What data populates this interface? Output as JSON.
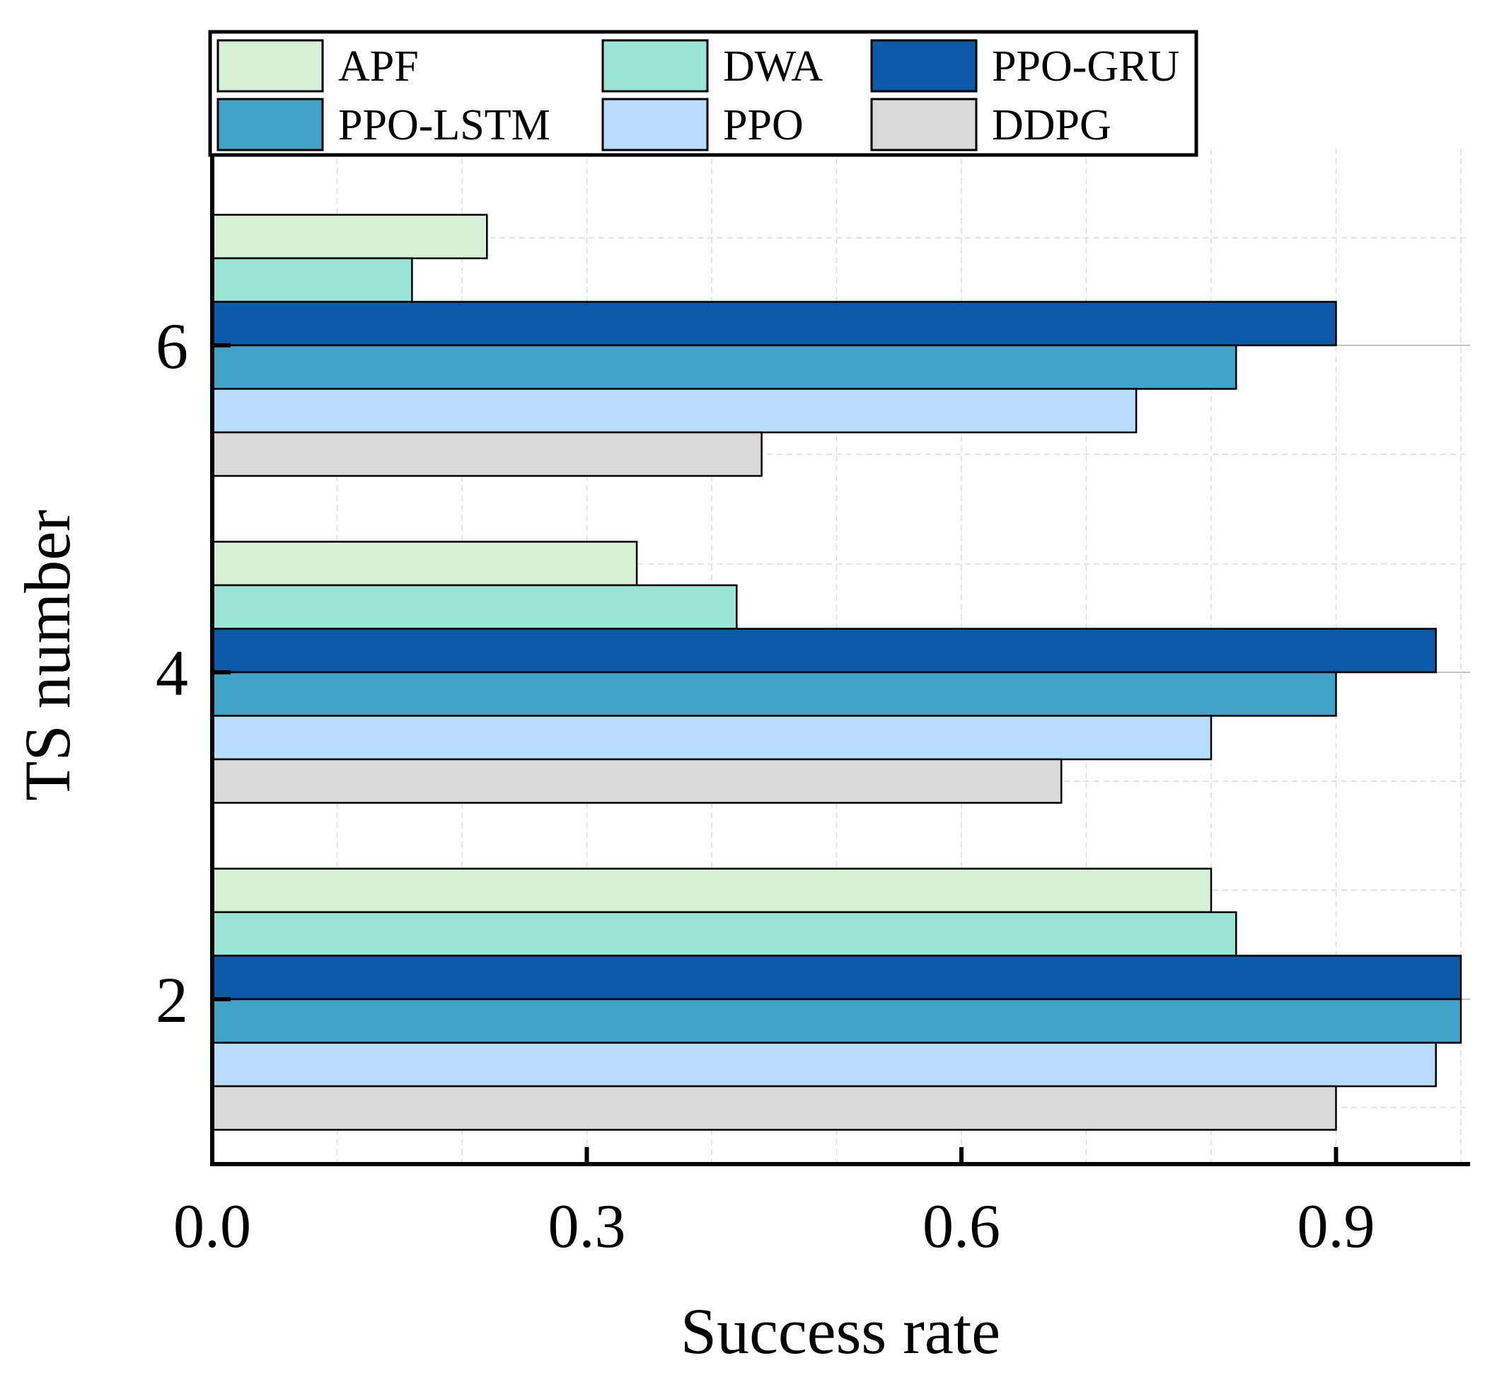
{
  "chart_data": {
    "type": "bar",
    "orientation": "horizontal",
    "title": "",
    "xlabel": "Success rate",
    "ylabel": "TS number",
    "xlim": [
      0,
      1.0
    ],
    "x_ticks": [
      "0.0",
      "0.3",
      "0.6",
      "0.9"
    ],
    "categories": [
      "2",
      "4",
      "6"
    ],
    "grid": true,
    "legend_position": "top",
    "series": [
      {
        "name": "APF",
        "color": "#d5f0d4",
        "values": [
          0.8,
          0.34,
          0.22
        ]
      },
      {
        "name": "DWA",
        "color": "#9be5d5",
        "values": [
          0.82,
          0.42,
          0.16
        ]
      },
      {
        "name": "PPO-GRU",
        "color": "#0c5aa8",
        "values": [
          1.0,
          0.98,
          0.9
        ]
      },
      {
        "name": "PPO-LSTM",
        "color": "#42a3c8",
        "values": [
          1.0,
          0.9,
          0.82
        ]
      },
      {
        "name": "PPO",
        "color": "#b8dcfb",
        "values": [
          0.98,
          0.8,
          0.74
        ]
      },
      {
        "name": "DDPG",
        "color": "#d9d9d9",
        "values": [
          0.9,
          0.68,
          0.44
        ]
      }
    ]
  }
}
